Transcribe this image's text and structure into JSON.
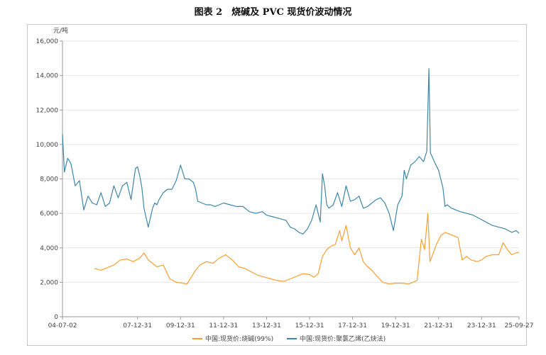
{
  "figure": {
    "title": "图表 2　烧碱及 PVC 现货价波动情况"
  },
  "chart_data": {
    "type": "line",
    "title": "图表 2　烧碱及 PVC 现货价波动情况",
    "unit_label": "元/吨",
    "xlabel": "",
    "ylabel": "元/吨",
    "xlim": [
      2004.51,
      2025.74
    ],
    "ylim": [
      0,
      16000
    ],
    "y_ticks": [
      0,
      2000,
      4000,
      6000,
      8000,
      10000,
      12000,
      14000,
      16000
    ],
    "y_tick_labels": [
      "0",
      "2,000",
      "4,000",
      "6,000",
      "8,000",
      "10,000",
      "12,000",
      "14,000",
      "16,000"
    ],
    "x_ticks": [
      2004.51,
      2008.0,
      2010.0,
      2012.0,
      2014.0,
      2016.0,
      2018.0,
      2020.0,
      2022.0,
      2024.0,
      2025.74
    ],
    "x_tick_labels": [
      "04-07-02",
      "07-12-31",
      "09-12-31",
      "11-12-31",
      "13-12-31",
      "15-12-31",
      "17-12-31",
      "19-12-31",
      "21-12-31",
      "23-12-31",
      "25-09-27"
    ],
    "grid": true,
    "legend_position": "bottom",
    "colors": {
      "caustic_soda": "#f5a033",
      "pvc": "#3f86a8",
      "axis": "#999999",
      "grid": "#e6e6e6"
    },
    "series": [
      {
        "name": "中国:现货价:烧碱(99%)",
        "x": [
          2006.0,
          2006.3,
          2006.6,
          2006.9,
          2007.2,
          2007.5,
          2007.8,
          2008.1,
          2008.3,
          2008.5,
          2008.7,
          2008.9,
          2009.2,
          2009.5,
          2009.8,
          2010.1,
          2010.3,
          2010.5,
          2010.7,
          2010.9,
          2011.2,
          2011.5,
          2011.8,
          2012.1,
          2012.4,
          2012.7,
          2013.0,
          2013.3,
          2013.6,
          2013.9,
          2014.2,
          2014.5,
          2014.8,
          2015.1,
          2015.4,
          2015.7,
          2016.0,
          2016.2,
          2016.4,
          2016.6,
          2016.8,
          2017.0,
          2017.2,
          2017.4,
          2017.5,
          2017.7,
          2017.9,
          2018.1,
          2018.3,
          2018.5,
          2018.7,
          2018.9,
          2019.1,
          2019.4,
          2019.7,
          2020.0,
          2020.3,
          2020.6,
          2020.8,
          2021.0,
          2021.2,
          2021.35,
          2021.5,
          2021.6,
          2021.75,
          2021.9,
          2022.1,
          2022.3,
          2022.5,
          2022.7,
          2022.9,
          2023.1,
          2023.3,
          2023.5,
          2023.8,
          2024.0,
          2024.2,
          2024.5,
          2024.8,
          2025.0,
          2025.2,
          2025.4,
          2025.6,
          2025.74
        ],
        "values": [
          2800,
          2700,
          2850,
          3000,
          3300,
          3350,
          3200,
          3400,
          3700,
          3300,
          3100,
          2900,
          3000,
          2200,
          2000,
          1950,
          1900,
          2300,
          2700,
          3000,
          3200,
          3100,
          3400,
          3600,
          3300,
          2900,
          2800,
          2600,
          2400,
          2300,
          2200,
          2100,
          2050,
          2200,
          2350,
          2500,
          2450,
          2300,
          2500,
          3500,
          3900,
          4100,
          4200,
          5000,
          4400,
          5300,
          4000,
          3600,
          4000,
          3200,
          2900,
          2700,
          2400,
          2000,
          1900,
          1950,
          1950,
          1900,
          2000,
          2100,
          4500,
          3900,
          6000,
          3200,
          3700,
          4200,
          4700,
          4900,
          4800,
          4700,
          4600,
          3300,
          3500,
          3300,
          3200,
          3300,
          3500,
          3600,
          3600,
          4300,
          3900,
          3600,
          3700,
          3750
        ]
      },
      {
        "name": "中国:现货价:聚氯乙烯(乙炔法)",
        "x": [
          2004.51,
          2004.6,
          2004.75,
          2004.9,
          2005.1,
          2005.3,
          2005.5,
          2005.7,
          2005.9,
          2006.1,
          2006.3,
          2006.5,
          2006.7,
          2006.9,
          2007.1,
          2007.3,
          2007.5,
          2007.7,
          2007.9,
          2008.0,
          2008.1,
          2008.2,
          2008.3,
          2008.5,
          2008.7,
          2008.8,
          2008.9,
          2009.0,
          2009.2,
          2009.4,
          2009.6,
          2009.8,
          2010.0,
          2010.2,
          2010.4,
          2010.6,
          2010.7,
          2010.8,
          2011.0,
          2011.2,
          2011.4,
          2011.6,
          2011.8,
          2012.0,
          2012.3,
          2012.6,
          2012.9,
          2013.2,
          2013.5,
          2013.8,
          2014.0,
          2014.3,
          2014.6,
          2014.9,
          2015.1,
          2015.3,
          2015.5,
          2015.7,
          2015.9,
          2016.1,
          2016.3,
          2016.5,
          2016.6,
          2016.7,
          2016.8,
          2016.9,
          2017.1,
          2017.3,
          2017.5,
          2017.7,
          2017.9,
          2018.1,
          2018.3,
          2018.5,
          2018.7,
          2018.9,
          2019.1,
          2019.3,
          2019.5,
          2019.7,
          2019.9,
          2020.1,
          2020.3,
          2020.4,
          2020.5,
          2020.7,
          2020.9,
          2021.1,
          2021.3,
          2021.45,
          2021.55,
          2021.62,
          2021.7,
          2021.8,
          2022.0,
          2022.2,
          2022.3,
          2022.4,
          2022.6,
          2022.8,
          2023.0,
          2023.3,
          2023.6,
          2023.9,
          2024.2,
          2024.5,
          2024.8,
          2025.1,
          2025.4,
          2025.6,
          2025.74
        ],
        "values": [
          10600,
          8400,
          9200,
          8900,
          7600,
          7900,
          6200,
          7000,
          6600,
          6500,
          7200,
          6400,
          6600,
          7600,
          6900,
          7600,
          7800,
          6800,
          8600,
          8700,
          8200,
          7500,
          6300,
          5200,
          6300,
          6600,
          6500,
          6800,
          7200,
          7400,
          7400,
          7900,
          8800,
          8000,
          8000,
          7800,
          7400,
          6700,
          6600,
          6500,
          6500,
          6400,
          6500,
          6600,
          6500,
          6400,
          6400,
          6100,
          6000,
          6100,
          5900,
          5800,
          5700,
          5600,
          5200,
          5100,
          4900,
          4800,
          5100,
          5600,
          6500,
          5500,
          8300,
          7600,
          6500,
          6300,
          6500,
          7200,
          6400,
          7600,
          6700,
          6800,
          7000,
          6300,
          6400,
          6600,
          6800,
          6900,
          6600,
          6000,
          5000,
          6500,
          7000,
          8500,
          8000,
          8800,
          9000,
          9300,
          9000,
          9600,
          14400,
          9500,
          9300,
          9000,
          8500,
          7500,
          6400,
          6500,
          6300,
          6200,
          6100,
          6000,
          5900,
          5700,
          5500,
          5300,
          5200,
          5100,
          4900,
          5000,
          4850
        ]
      }
    ]
  }
}
